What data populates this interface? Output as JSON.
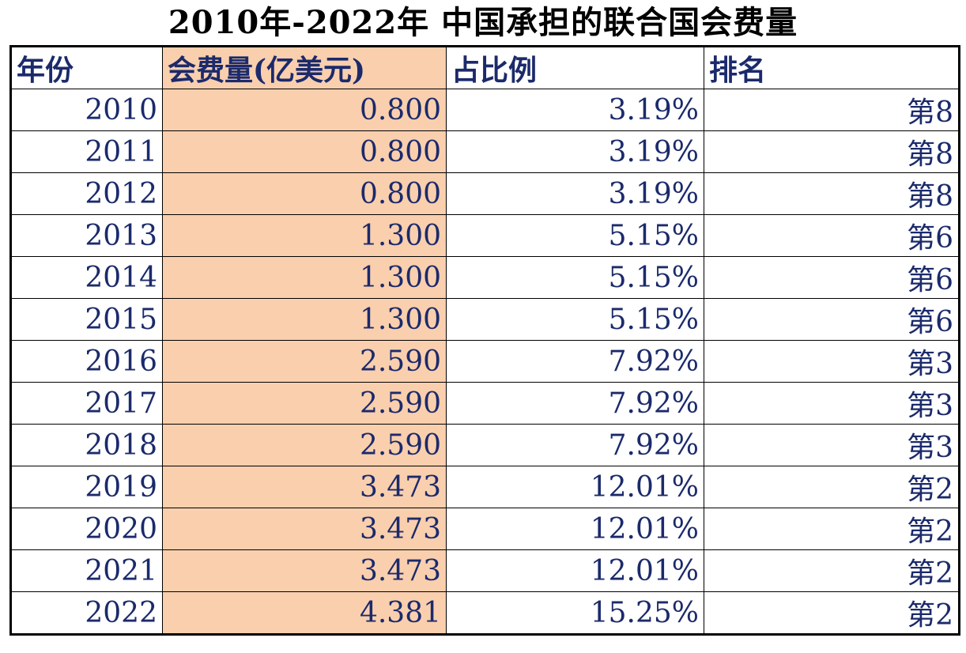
{
  "title": "2010年-2022年  中国承担的联合国会费量",
  "chart_data": {
    "type": "table",
    "title": "2010年-2022年  中国承担的联合国会费量",
    "columns": [
      "年份",
      "会费量(亿美元)",
      "占比例",
      "排名"
    ],
    "highlight_color": "#f9cfae",
    "text_color": "#1b2a6b",
    "rows": [
      [
        "2010",
        "0.800",
        "3.19%",
        "第8"
      ],
      [
        "2011",
        "0.800",
        "3.19%",
        "第8"
      ],
      [
        "2012",
        "0.800",
        "3.19%",
        "第8"
      ],
      [
        "2013",
        "1.300",
        "5.15%",
        "第6"
      ],
      [
        "2014",
        "1.300",
        "5.15%",
        "第6"
      ],
      [
        "2015",
        "1.300",
        "5.15%",
        "第6"
      ],
      [
        "2016",
        "2.590",
        "7.92%",
        "第3"
      ],
      [
        "2017",
        "2.590",
        "7.92%",
        "第3"
      ],
      [
        "2018",
        "2.590",
        "7.92%",
        "第3"
      ],
      [
        "2019",
        "3.473",
        "12.01%",
        "第2"
      ],
      [
        "2020",
        "3.473",
        "12.01%",
        "第2"
      ],
      [
        "2021",
        "3.473",
        "12.01%",
        "第2"
      ],
      [
        "2022",
        "4.381",
        "15.25%",
        "第2"
      ]
    ]
  }
}
